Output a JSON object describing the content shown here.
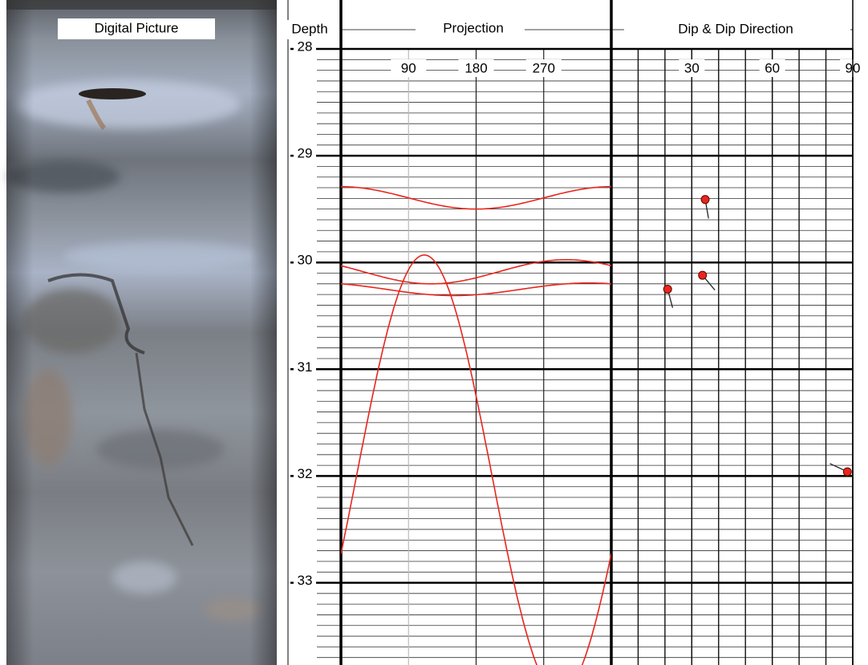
{
  "chart_data": {
    "type": "borehole-log",
    "image_title": "Digital Picture",
    "depth_label": "Depth",
    "ylim": [
      28,
      33.77
    ],
    "yticks": [
      28,
      29,
      30,
      31,
      32,
      33
    ],
    "minor_grid_step": 0.1,
    "projection": {
      "title": "Projection",
      "xlim": [
        0,
        360
      ],
      "xticks": [
        90,
        180,
        270
      ],
      "color": "#e8261e",
      "sinusoids": [
        {
          "depth": 29.395,
          "amplitude": 0.105,
          "trough_azimuth": 180
        },
        {
          "depth": 30.087,
          "amplitude": 0.113,
          "trough_azimuth": 120
        },
        {
          "depth": 30.251,
          "amplitude": 0.059,
          "trough_azimuth": 150
        },
        {
          "depth": 31.99,
          "amplitude": 2.06,
          "trough_azimuth": 291
        }
      ]
    },
    "dip_plot": {
      "title": "Dip & Dip Direction",
      "xlim": [
        0,
        90
      ],
      "xticks": [
        30,
        60,
        90
      ],
      "grid_step": 10,
      "color": "#e8261e",
      "points": [
        {
          "dip": 35,
          "depth": 29.41,
          "dip_direction": 170
        },
        {
          "dip": 34,
          "depth": 30.12,
          "dip_direction": 140
        },
        {
          "dip": 21,
          "depth": 30.25,
          "dip_direction": 165
        },
        {
          "dip": 88,
          "depth": 31.96,
          "dip_direction": 295
        }
      ]
    }
  }
}
